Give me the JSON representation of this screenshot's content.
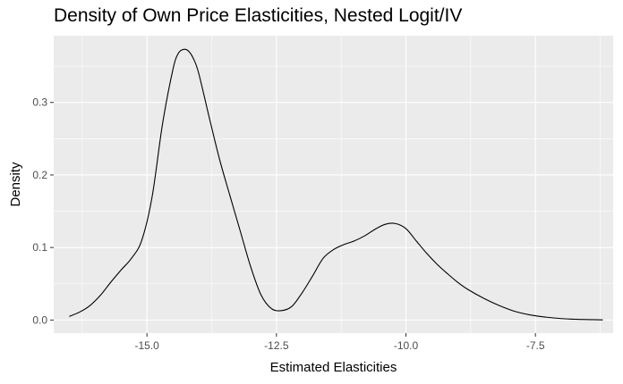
{
  "chart_data": {
    "type": "line",
    "title": "Density of Own Price Elasticities, Nested Logit/IV",
    "xlabel": "Estimated Elasticities",
    "ylabel": "Density",
    "xlim": [
      -16.8,
      -6.0
    ],
    "ylim": [
      -0.018,
      0.392
    ],
    "x_ticks": [
      -15.0,
      -12.5,
      -10.0,
      -7.5
    ],
    "x_tick_labels": [
      "-15.0",
      "-12.5",
      "-10.0",
      "-7.5"
    ],
    "y_ticks": [
      0.0,
      0.1,
      0.2,
      0.3
    ],
    "y_tick_labels": [
      "0.0",
      "0.1",
      "0.2",
      "0.3"
    ],
    "grid": true,
    "legend": "none",
    "background_color": "#ebebeb",
    "grid_color": "#ffffff",
    "line_color": "#000000",
    "series": [
      {
        "x": [
          -16.5,
          -16.3,
          -16.1,
          -15.9,
          -15.7,
          -15.5,
          -15.3,
          -15.1,
          -14.9,
          -14.7,
          -14.5,
          -14.4,
          -14.3,
          -14.2,
          -14.1,
          -14.0,
          -13.8,
          -13.6,
          -13.4,
          -13.2,
          -13.0,
          -12.8,
          -12.6,
          -12.4,
          -12.2,
          -12.0,
          -11.8,
          -11.6,
          -11.4,
          -11.2,
          -11.0,
          -10.8,
          -10.6,
          -10.4,
          -10.2,
          -10.0,
          -9.8,
          -9.6,
          -9.4,
          -9.2,
          -9.0,
          -8.8,
          -8.5,
          -8.2,
          -7.9,
          -7.6,
          -7.3,
          -7.0,
          -6.7,
          -6.4,
          -6.2
        ],
        "y": [
          0.005,
          0.011,
          0.02,
          0.034,
          0.052,
          0.069,
          0.085,
          0.11,
          0.17,
          0.27,
          0.345,
          0.367,
          0.373,
          0.371,
          0.36,
          0.34,
          0.28,
          0.222,
          0.172,
          0.123,
          0.074,
          0.035,
          0.016,
          0.013,
          0.019,
          0.038,
          0.061,
          0.085,
          0.097,
          0.104,
          0.109,
          0.116,
          0.125,
          0.132,
          0.133,
          0.126,
          0.109,
          0.092,
          0.077,
          0.064,
          0.052,
          0.042,
          0.03,
          0.02,
          0.012,
          0.007,
          0.004,
          0.002,
          0.001,
          0.0005,
          0.0003
        ]
      }
    ]
  }
}
